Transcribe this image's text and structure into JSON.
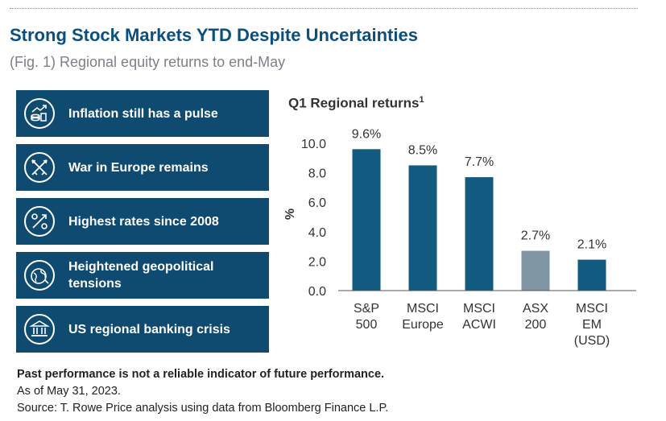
{
  "header": {
    "title": "Strong Stock Markets YTD Despite Uncertainties",
    "subtitle": "(Fig. 1) Regional equity returns to end-May"
  },
  "panels": [
    {
      "label": "Inflation still has a pulse",
      "icon": "inflation-coins-icon"
    },
    {
      "label": "War in Europe remains",
      "icon": "crossed-swords-icon"
    },
    {
      "label": "Highest rates since 2008",
      "icon": "percent-icon"
    },
    {
      "label": "Heightened geopolitical tensions",
      "icon": "globe-icon"
    },
    {
      "label": "US regional banking crisis",
      "icon": "bank-icon"
    }
  ],
  "chart_data": {
    "type": "bar",
    "title": "Q1 Regional returns",
    "title_footnote": "1",
    "ylabel": "%",
    "xlabel": "",
    "ylim": [
      0,
      10
    ],
    "yticks": [
      "0.0",
      "2.0",
      "4.0",
      "6.0",
      "8.0",
      "10.0"
    ],
    "categories": [
      [
        "S&P",
        "500"
      ],
      [
        "MSCI",
        "Europe"
      ],
      [
        "MSCI",
        "ACWI"
      ],
      [
        "ASX",
        "200"
      ],
      [
        "MSCI",
        "EM",
        "(USD)"
      ]
    ],
    "values": [
      9.6,
      8.5,
      7.7,
      2.7,
      2.1
    ],
    "data_labels": [
      "9.6%",
      "8.5%",
      "7.7%",
      "2.7%",
      "2.1%"
    ],
    "colors": [
      "#135a80",
      "#135a80",
      "#135a80",
      "#7f95a3",
      "#135a80"
    ]
  },
  "footer": {
    "disclaimer": "Past performance is not a reliable indicator of future performance.",
    "as_of": "As of May 31, 2023.",
    "source": "Source: T. Rowe Price analysis using data from Bloomberg Finance L.P."
  }
}
